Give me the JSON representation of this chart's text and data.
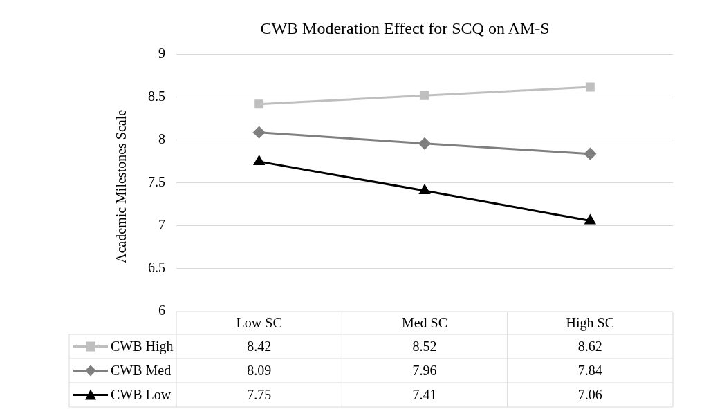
{
  "chart_data": {
    "type": "line",
    "title": "CWB Moderation Effect for SCQ on AM-S",
    "ylabel": "Academic Milestones Scale",
    "categories": [
      "Low SC",
      "Med SC",
      "High SC"
    ],
    "series": [
      {
        "name": "CWB High",
        "color": "#bfbfbf",
        "marker": "square",
        "values": [
          8.42,
          8.52,
          8.62
        ]
      },
      {
        "name": "CWB Med",
        "color": "#7f7f7f",
        "marker": "diamond",
        "values": [
          8.09,
          7.96,
          7.84
        ]
      },
      {
        "name": "CWB Low",
        "color": "#000000",
        "marker": "triangle",
        "values": [
          7.75,
          7.41,
          7.06
        ]
      }
    ],
    "ylim": [
      6,
      9
    ],
    "yticks": [
      6,
      6.5,
      7,
      7.5,
      8,
      8.5,
      9
    ],
    "grid": "y",
    "legend": "bottom",
    "data_labels": true,
    "line_style": "solid"
  }
}
